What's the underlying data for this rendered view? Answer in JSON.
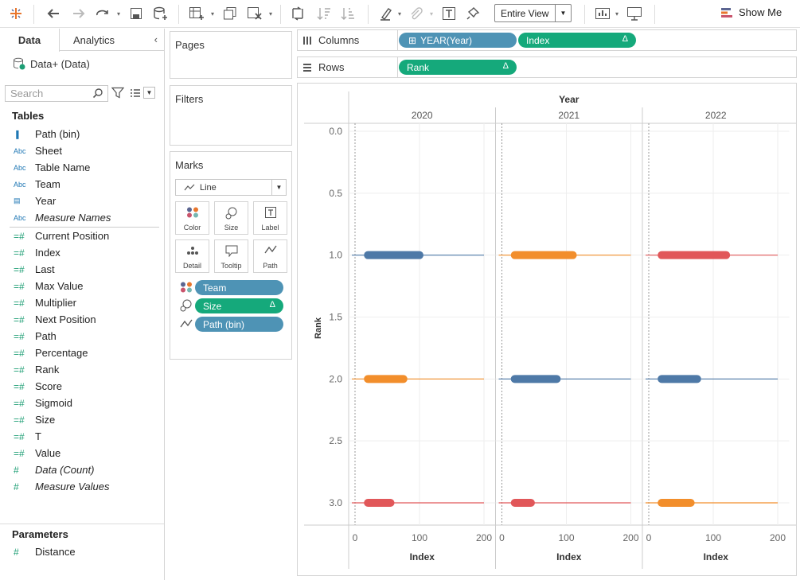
{
  "toolbar": {
    "view_mode": "Entire View",
    "show_me_label": "Show Me",
    "icons": [
      "tableau-logo-icon",
      "undo-icon",
      "redo-icon",
      "pause-updates-icon",
      "save-icon",
      "new-datasource-icon",
      "new-worksheet-icon",
      "duplicate-icon",
      "clear-icon",
      "swap-icon",
      "sort-asc-icon",
      "sort-desc-icon",
      "highlight-icon",
      "group-icon",
      "label-icon",
      "pin-icon",
      "present-icon"
    ]
  },
  "sidebar": {
    "tab_data": "Data",
    "tab_analytics": "Analytics",
    "datasource": "Data+ (Data)",
    "search_placeholder": "Search",
    "tables_header": "Tables",
    "parameters_header": "Parameters",
    "dimensions": [
      {
        "icon": "bin-icon",
        "glyph": "▐",
        "label": "Path (bin)"
      },
      {
        "icon": "string-icon",
        "glyph": "Abc",
        "label": "Sheet"
      },
      {
        "icon": "string-icon",
        "glyph": "Abc",
        "label": "Table Name"
      },
      {
        "icon": "string-icon",
        "glyph": "Abc",
        "label": "Team"
      },
      {
        "icon": "date-icon",
        "glyph": "▤",
        "label": "Year"
      },
      {
        "icon": "string-icon",
        "glyph": "Abc",
        "label": "Measure Names",
        "italic": true
      }
    ],
    "measures": [
      {
        "label": "Current Position"
      },
      {
        "label": "Index"
      },
      {
        "label": "Last"
      },
      {
        "label": "Max Value"
      },
      {
        "label": "Multiplier"
      },
      {
        "label": "Next Position"
      },
      {
        "label": "Path"
      },
      {
        "label": "Percentage"
      },
      {
        "label": "Rank"
      },
      {
        "label": "Score"
      },
      {
        "label": "Sigmoid"
      },
      {
        "label": "Size"
      },
      {
        "label": "T"
      },
      {
        "label": "Value"
      },
      {
        "label": "Data (Count)",
        "italic": true
      },
      {
        "label": "Measure Values",
        "italic": true
      }
    ],
    "parameters": [
      {
        "label": "Distance"
      }
    ]
  },
  "cards": {
    "pages_label": "Pages",
    "filters_label": "Filters",
    "marks_label": "Marks",
    "mark_type": "Line",
    "buttons": {
      "color": "Color",
      "size": "Size",
      "label": "Label",
      "detail": "Detail",
      "tooltip": "Tooltip",
      "path": "Path"
    },
    "mark_pills": [
      {
        "label": "Team",
        "kind": "dimension"
      },
      {
        "label": "Size",
        "kind": "measure",
        "delta": "Δ"
      },
      {
        "label": "Path (bin)",
        "kind": "dimension"
      }
    ]
  },
  "shelves": {
    "columns_label": "Columns",
    "rows_label": "Rows",
    "columns_pills": [
      {
        "label": "YEAR(Year)",
        "kind": "dimension",
        "prefix": "⊞"
      },
      {
        "label": "Index",
        "kind": "measure",
        "delta": "Δ"
      }
    ],
    "rows_pills": [
      {
        "label": "Rank",
        "kind": "measure",
        "delta": "Δ"
      }
    ]
  },
  "colors": {
    "blue": "#4e79a7",
    "orange": "#f28e2b",
    "red": "#e15759",
    "dimension_pill": "#4e93b5",
    "measure_pill": "#15a97b"
  },
  "chart_data": {
    "type": "line",
    "title": "",
    "column_header": "Year",
    "panels": [
      "2020",
      "2021",
      "2022"
    ],
    "xlabel": "Index",
    "ylabel": "Rank",
    "xlim": [
      -10,
      210
    ],
    "ylim": [
      0,
      3.15
    ],
    "xticks": [
      0,
      100,
      200
    ],
    "yticks": [
      0.0,
      0.5,
      1.0,
      1.5,
      2.0,
      2.5,
      3.0
    ],
    "grid": true,
    "series_by_panel": [
      [
        {
          "rank": 1,
          "color": "blue",
          "thick_from": 20,
          "thick_to": 100,
          "line_to": 200
        },
        {
          "rank": 2,
          "color": "orange",
          "thick_from": 20,
          "thick_to": 75,
          "line_to": 200
        },
        {
          "rank": 3,
          "color": "red",
          "thick_from": 20,
          "thick_to": 55,
          "line_to": 200
        }
      ],
      [
        {
          "rank": 1,
          "color": "orange",
          "thick_from": 20,
          "thick_to": 110,
          "line_to": 200
        },
        {
          "rank": 2,
          "color": "blue",
          "thick_from": 20,
          "thick_to": 85,
          "line_to": 200
        },
        {
          "rank": 3,
          "color": "red",
          "thick_from": 20,
          "thick_to": 45,
          "line_to": 200
        }
      ],
      [
        {
          "rank": 1,
          "color": "red",
          "thick_from": 20,
          "thick_to": 120,
          "line_to": 200
        },
        {
          "rank": 2,
          "color": "blue",
          "thick_from": 20,
          "thick_to": 75,
          "line_to": 200
        },
        {
          "rank": 3,
          "color": "orange",
          "thick_from": 20,
          "thick_to": 65,
          "line_to": 200
        }
      ]
    ]
  }
}
